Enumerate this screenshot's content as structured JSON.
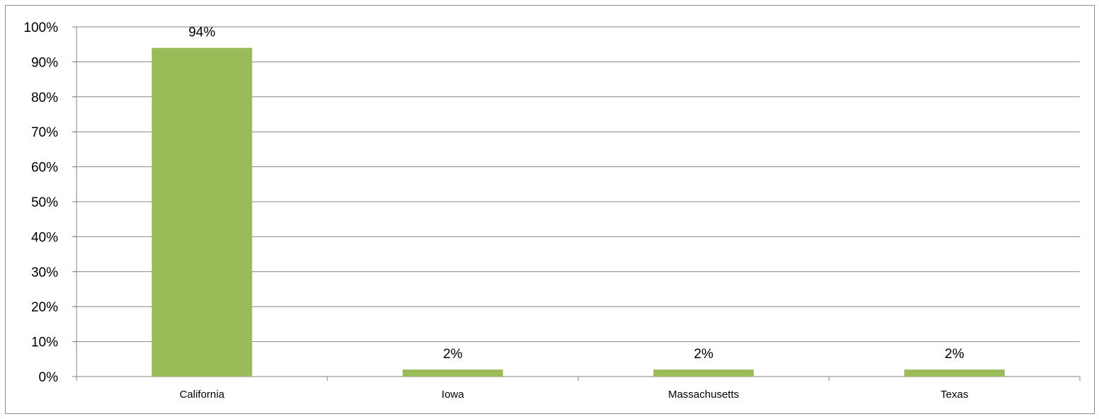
{
  "chart_data": {
    "type": "bar",
    "categories": [
      "California",
      "Iowa",
      "Massachusetts",
      "Texas"
    ],
    "values": [
      94,
      2,
      2,
      2
    ],
    "value_labels": [
      "94%",
      "2%",
      "2%",
      "2%"
    ],
    "title": "",
    "xlabel": "",
    "ylabel": "",
    "ylim": [
      0,
      100
    ],
    "y_ticks": [
      0,
      10,
      20,
      30,
      40,
      50,
      60,
      70,
      80,
      90,
      100
    ],
    "y_tick_labels": [
      "0%",
      "10%",
      "20%",
      "30%",
      "40%",
      "50%",
      "60%",
      "70%",
      "80%",
      "90%",
      "100%"
    ],
    "grid": true,
    "legend": "none",
    "colors": {
      "bar": "#9bbb59",
      "grid": "#868686",
      "axis": "#868686",
      "border": "#8c8c8c"
    }
  }
}
